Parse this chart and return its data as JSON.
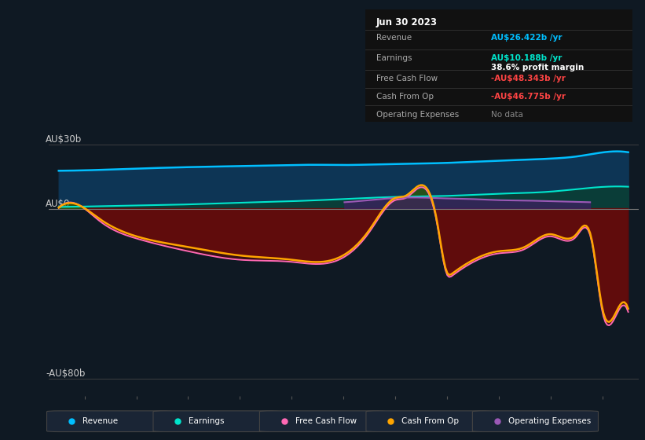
{
  "background_color": "#0f1923",
  "chart_bg": "#0f1923",
  "ylabel_top": "AU$30b",
  "ylabel_zero": "AU$0",
  "ylabel_bottom": "-AU$80b",
  "revenue_color": "#00bfff",
  "earnings_color": "#00e5cc",
  "fcf_color": "#ff69b4",
  "cfo_color": "#ffa500",
  "opex_color": "#9b59b6",
  "revenue_fill": "#0d3a52",
  "earnings_fill": "#0a4040",
  "legend_items": [
    "Revenue",
    "Earnings",
    "Free Cash Flow",
    "Cash From Op",
    "Operating Expenses"
  ],
  "legend_colors": [
    "#00bfff",
    "#00e5cc",
    "#ff69b4",
    "#ffa500",
    "#9b59b6"
  ],
  "info_box": {
    "date": "Jun 30 2023",
    "revenue_label": "Revenue",
    "revenue_val": "AU$26.422b /yr",
    "earnings_label": "Earnings",
    "earnings_val": "AU$10.188b /yr",
    "margin": "38.6% profit margin",
    "fcf_label": "Free Cash Flow",
    "fcf_val": "-AU$48.343b /yr",
    "cfo_label": "Cash From Op",
    "cfo_val": "-AU$46.775b /yr",
    "opex_label": "Operating Expenses",
    "opex_val": "No data",
    "revenue_color": "#00bfff",
    "earnings_color": "#00e5cc",
    "fcf_color": "#ff4444",
    "cfo_color": "#ff4444",
    "opex_color": "#888888"
  },
  "xlim_left": 2012.3,
  "xlim_right": 2023.7,
  "ylim_bottom": -88,
  "ylim_top": 36
}
